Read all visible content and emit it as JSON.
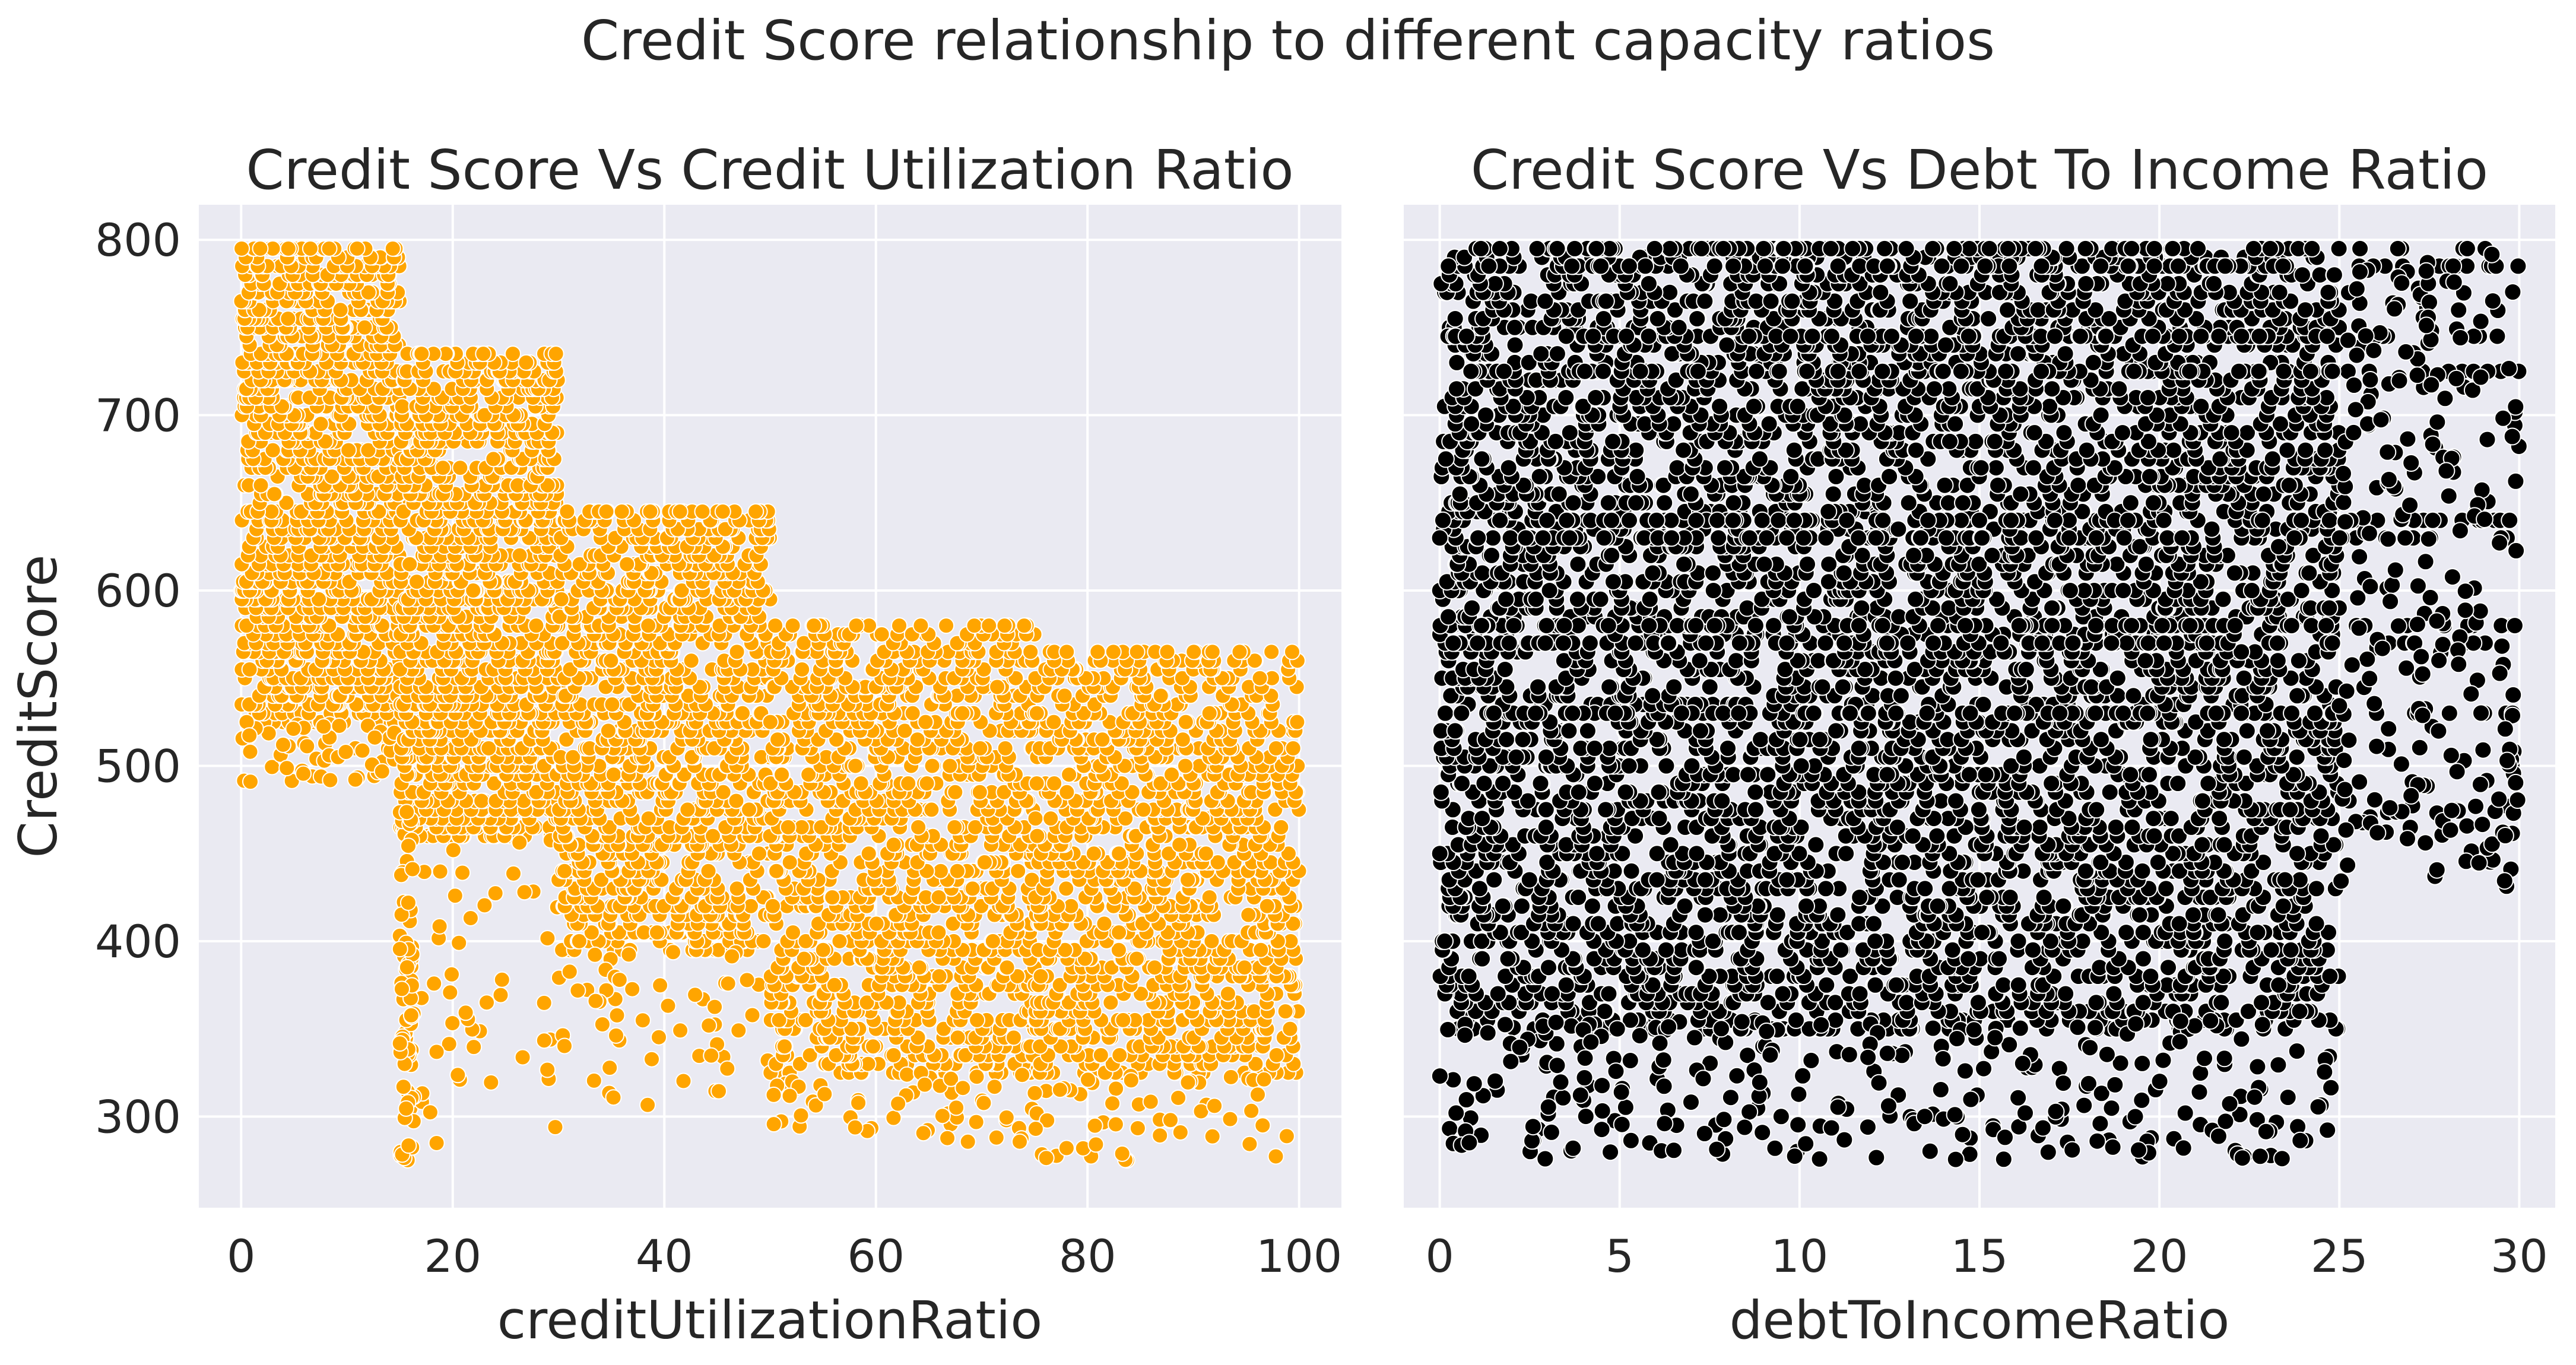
{
  "figure": {
    "suptitle": "Credit Score relationship to different capacity ratios"
  },
  "chart_data": [
    {
      "type": "scatter",
      "title": "Credit Score Vs Credit Utilization Ratio",
      "xlabel": "creditUtilizationRatio",
      "ylabel": "CreditScore",
      "xlim": [
        -4,
        104
      ],
      "ylim": [
        248,
        820
      ],
      "xticks": [
        0,
        20,
        40,
        60,
        80,
        100
      ],
      "yticks": [
        300,
        400,
        500,
        600,
        700,
        800
      ],
      "grid": true,
      "marker_color": "#FFA500",
      "marker_edge": "#ffffff",
      "background": "#EAEAF2",
      "points_note": "clusters of points",
      "bands": [
        {
          "x": [
            0,
            15
          ],
          "y_top": [
            740,
            795
          ],
          "y_bottom": [
            525,
            560
          ],
          "sparse_low": [
            490,
            525
          ]
        },
        {
          "x": [
            15,
            30
          ],
          "y_top": [
            690,
            735
          ],
          "y_bottom": [
            460,
            500
          ],
          "sparse_low": [
            275,
            460
          ]
        },
        {
          "x": [
            30,
            50
          ],
          "y_top": [
            610,
            645
          ],
          "y_bottom": [
            395,
            430
          ],
          "sparse_low": [
            305,
            395
          ]
        },
        {
          "x": [
            50,
            75
          ],
          "y_top": [
            555,
            580
          ],
          "y_bottom": [
            325,
            350
          ],
          "sparse_low": [
            285,
            325
          ]
        },
        {
          "x": [
            75,
            100
          ],
          "y_top": [
            535,
            565
          ],
          "y_bottom": [
            325,
            355
          ],
          "sparse_low": [
            275,
            325
          ]
        }
      ]
    },
    {
      "type": "scatter",
      "title": "Credit Score Vs Debt To Income Ratio",
      "xlabel": "debtToIncomeRatio",
      "ylabel": "",
      "xlim": [
        -1,
        31
      ],
      "ylim": [
        248,
        820
      ],
      "xticks": [
        0,
        5,
        10,
        15,
        20,
        25,
        30
      ],
      "yticks": [
        300,
        400,
        500,
        600,
        700,
        800
      ],
      "grid": true,
      "shared_y": true,
      "marker_color": "#000000",
      "marker_edge": "#ffffff",
      "background": "#EAEAF2",
      "dense_region": {
        "x": [
          0,
          25
        ],
        "y": [
          350,
          795
        ]
      },
      "sparse_region": {
        "x": [
          25,
          30
        ],
        "y": [
          375,
          795
        ]
      },
      "rows": [
        795,
        785,
        745,
        725,
        640,
        630,
        580,
        570,
        530
      ]
    }
  ]
}
